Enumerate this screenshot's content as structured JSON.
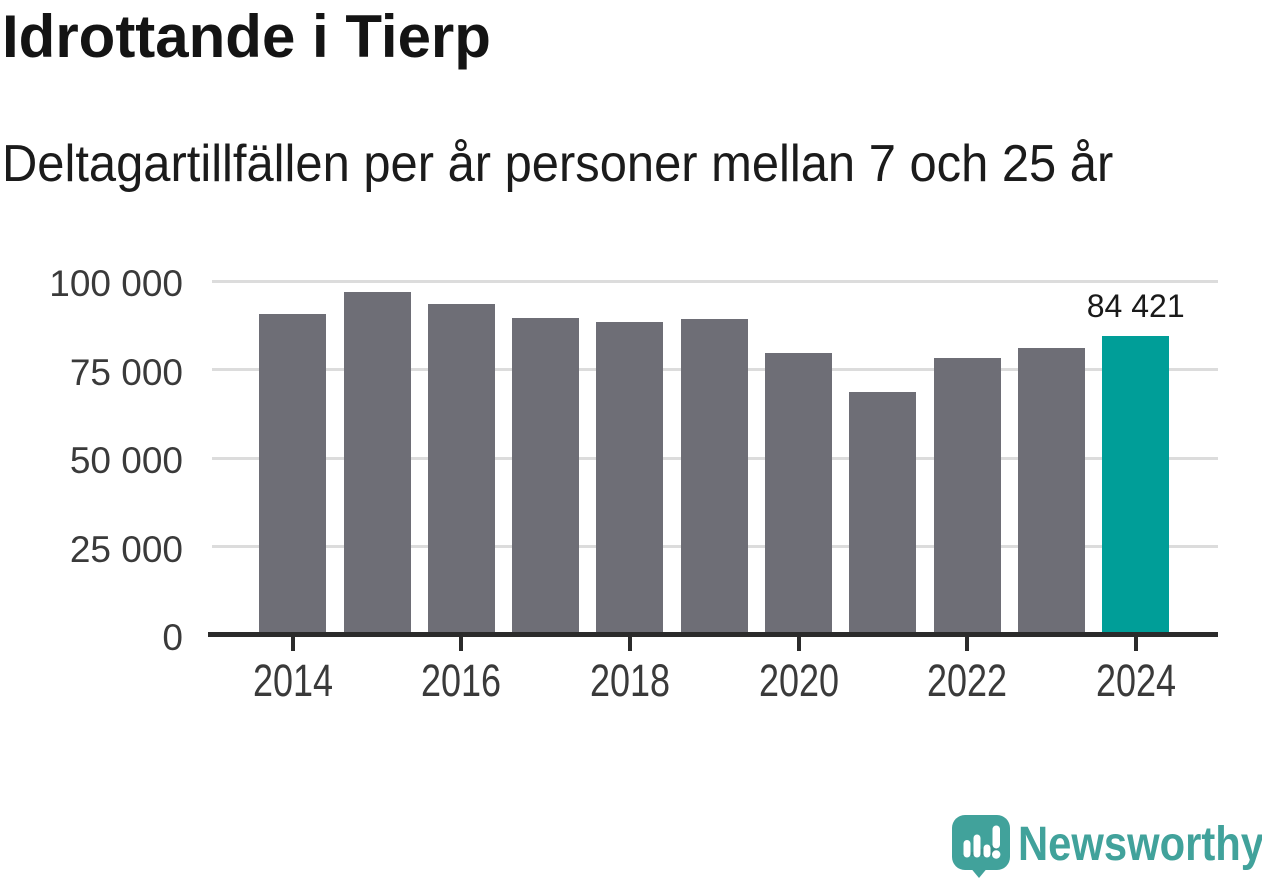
{
  "chart_data": {
    "type": "bar",
    "title": "Idrottande i Tierp",
    "subtitle": "Deltagartillfällen per år personer mellan 7 och 25 år",
    "categories": [
      "2014",
      "2015",
      "2016",
      "2017",
      "2018",
      "2019",
      "2020",
      "2021",
      "2022",
      "2023",
      "2024"
    ],
    "values": [
      90700,
      97000,
      93400,
      89500,
      88500,
      89300,
      79600,
      68700,
      78400,
      81200,
      84421
    ],
    "highlighted_category": "2024",
    "highlighted_value_label": "84 421",
    "ylim": [
      0,
      100000
    ],
    "yticks": [
      0,
      25000,
      50000,
      75000,
      100000
    ],
    "ytick_labels": [
      "0",
      "25 000",
      "50 000",
      "75 000",
      "100 000"
    ],
    "xtick_labels": [
      "2014",
      "2016",
      "2018",
      "2020",
      "2022",
      "2024"
    ],
    "grid": "horizontal",
    "legend": "none",
    "colors": {
      "bar": "#6e6e76",
      "highlight": "#009e98",
      "gridline": "#dcdcdc",
      "axis": "#2b2b2b",
      "title_text": "#141414",
      "label_text": "#3a3a3a",
      "value_text": "#1a1a1a"
    }
  },
  "branding": {
    "name": "Newsworthy",
    "color": "#41a29b",
    "icon": "bar-chart-exclamation-bubble-icon"
  }
}
